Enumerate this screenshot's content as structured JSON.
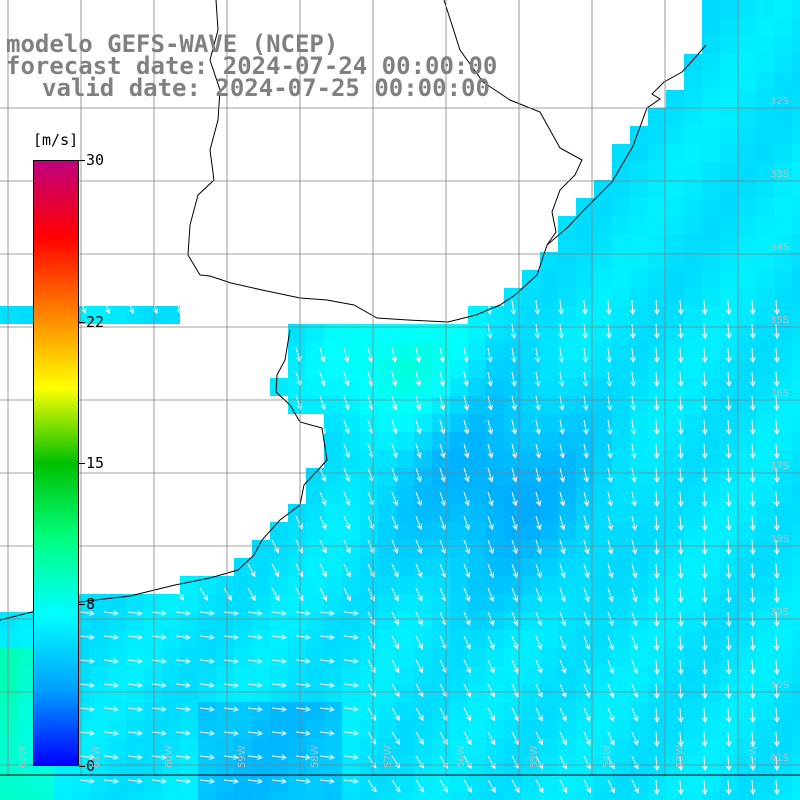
{
  "title": {
    "line1": "modelo GEFS-WAVE (NCEP)",
    "line2": "forecast date: 2024-07-24 00:00:00",
    "line3": "valid date: 2024-07-25 00:00:00"
  },
  "colorbar": {
    "unit": "[m/s]",
    "ticks": [
      "30",
      "22",
      "15",
      "8",
      "0"
    ],
    "tick_values": [
      30,
      22,
      15,
      8,
      0
    ],
    "range": [
      0,
      30
    ],
    "colors": [
      "#0000ff",
      "#00a0ff",
      "#00ffff",
      "#00ff80",
      "#00c000",
      "#ffff00",
      "#ff8000",
      "#ff0000",
      "#c00080"
    ]
  },
  "latitude_labels": [
    "32S",
    "33S",
    "34S",
    "35S",
    "36S",
    "37S",
    "38S",
    "39S",
    "40S",
    "41S"
  ],
  "longitude_labels": [
    "62W",
    "61W",
    "60W",
    "59W",
    "58W",
    "57W",
    "56W",
    "55W",
    "54W",
    "53W",
    "52W"
  ],
  "colors": {
    "land": "#ffffff",
    "coast": "#000000",
    "grid": "#808080",
    "arrow": "#ffffff",
    "title_text": "#808080"
  }
}
